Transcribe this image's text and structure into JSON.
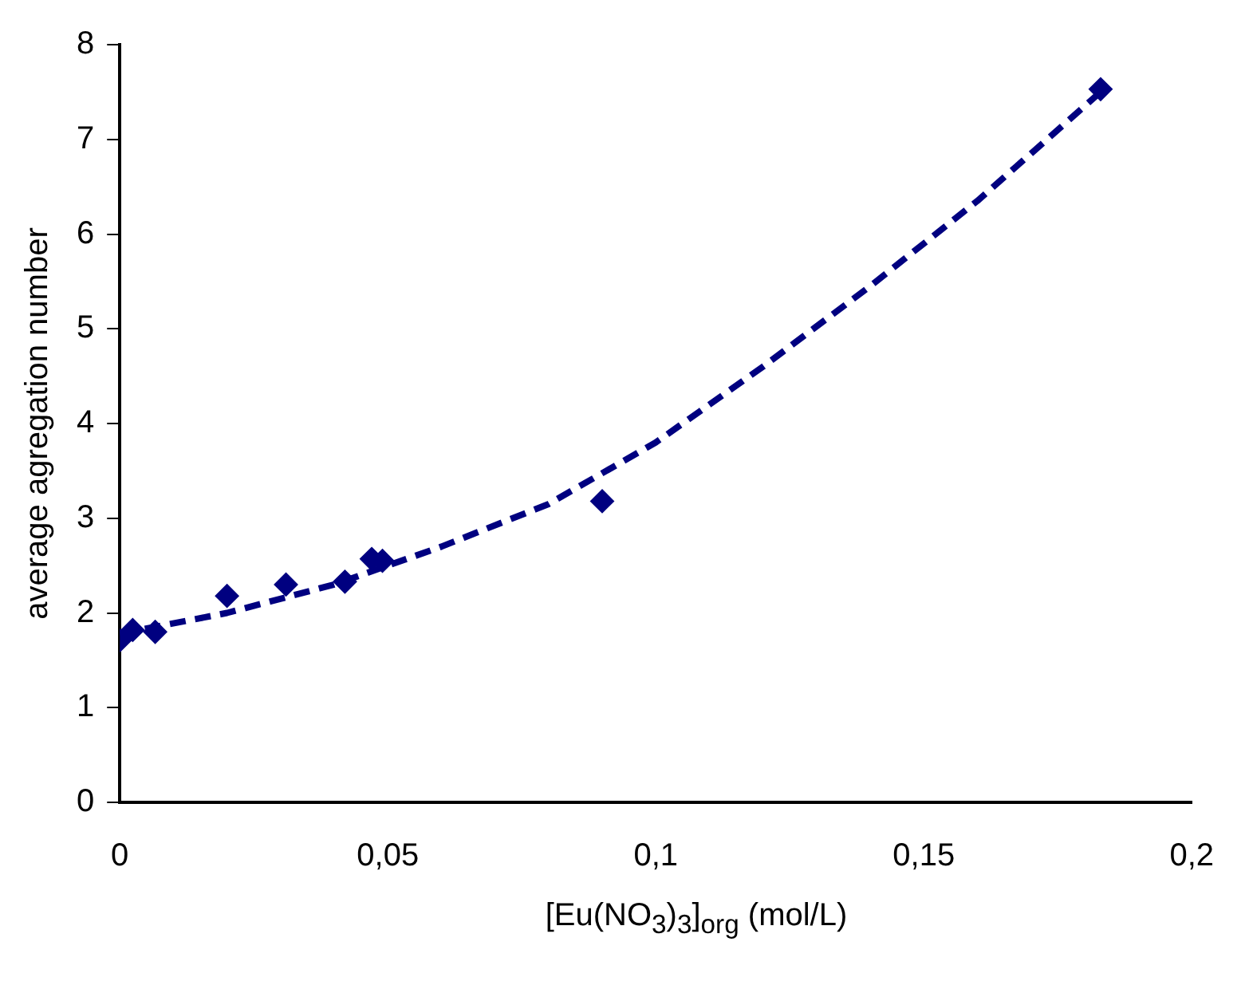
{
  "chart_data": {
    "type": "scatter",
    "xlabel": "[Eu(NO$_{3}$)$_{3}$]$_{org}$ (mol/L)",
    "ylabel": "average agregation number",
    "xlim": [
      0,
      0.2
    ],
    "xticks": [
      {
        "value": 0,
        "label": "0"
      },
      {
        "value": 0.05,
        "label": "0,05"
      },
      {
        "value": 0.1,
        "label": "0,1"
      },
      {
        "value": 0.15,
        "label": "0,15"
      },
      {
        "value": 0.2,
        "label": "0,2"
      }
    ],
    "ylim": [
      0,
      8
    ],
    "yticks": [
      0,
      1,
      2,
      3,
      4,
      5,
      6,
      7,
      8
    ],
    "grid": false,
    "legend": false,
    "series": [
      {
        "color": "#000080",
        "marker": "diamond",
        "x": [
          0,
          0.0024,
          0.0066,
          0.02,
          0.031,
          0.042,
          0.047,
          0.049,
          0.09,
          0.183
        ],
        "values": [
          1.71,
          1.82,
          1.8,
          2.18,
          2.3,
          2.33,
          2.57,
          2.55,
          3.18,
          7.53
        ]
      },
      {
        "type": "line",
        "color": "#000080",
        "marker": "none",
        "line_style": "dashed",
        "x": [
          0,
          0.02,
          0.04,
          0.06,
          0.08,
          0.1,
          0.12,
          0.14,
          0.16,
          0.183
        ],
        "values": [
          1.78,
          2.0,
          2.3,
          2.7,
          3.15,
          3.8,
          4.6,
          5.45,
          6.35,
          7.5
        ]
      }
    ]
  }
}
